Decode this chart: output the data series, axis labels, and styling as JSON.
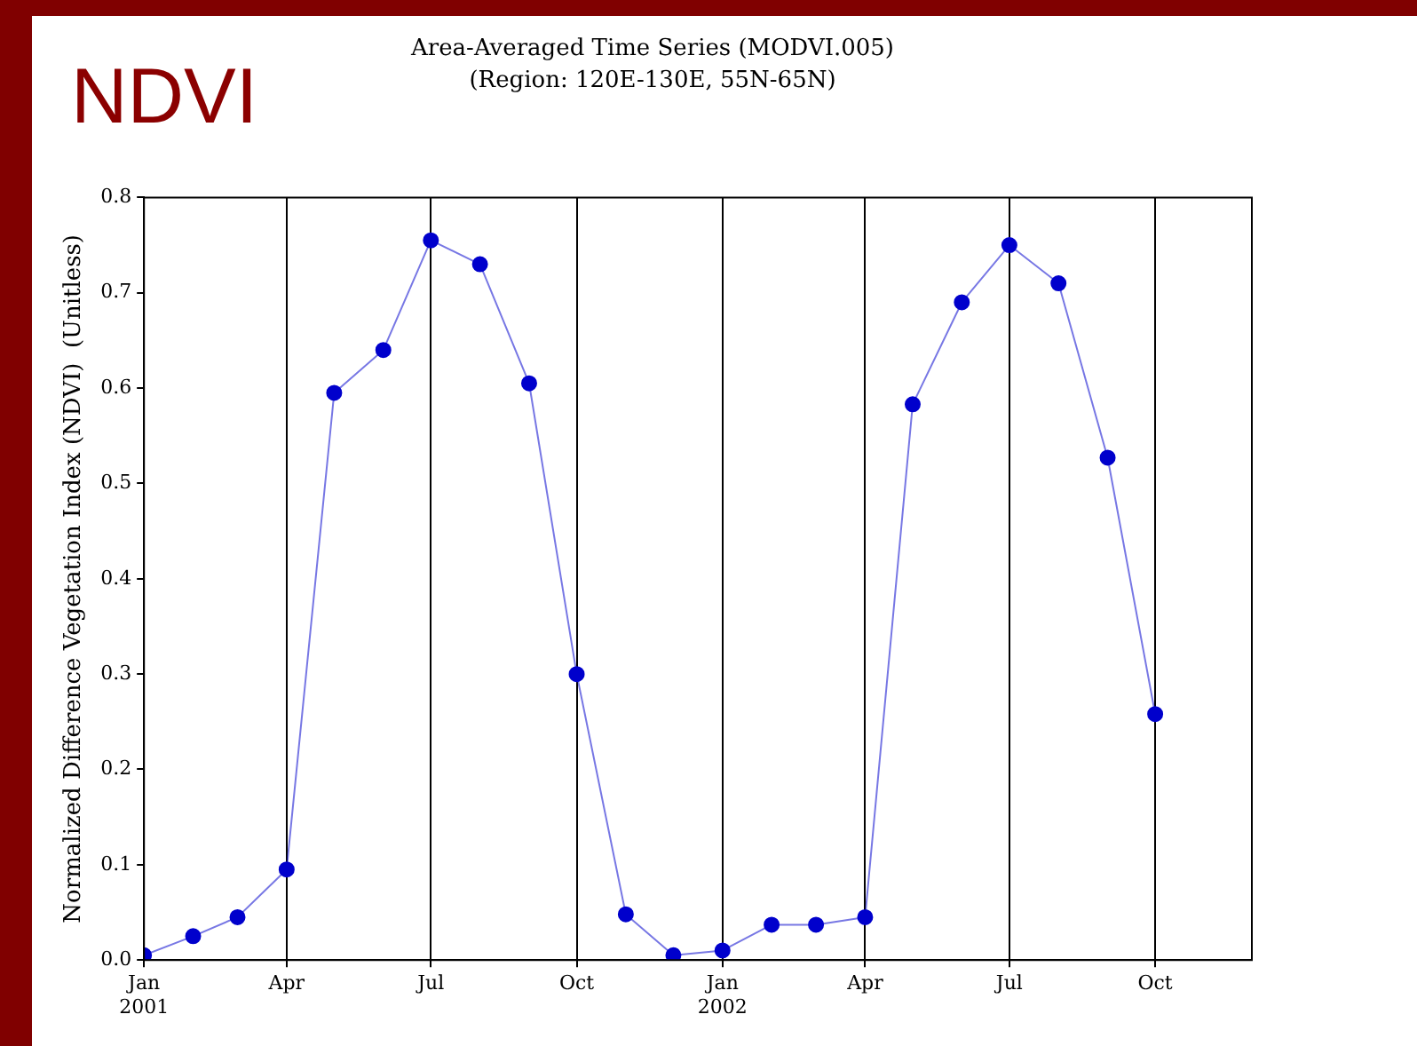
{
  "chart_data": {
    "type": "line",
    "title": "Area-Averaged Time Series (MODVI.005)",
    "subtitle": "(Region: 120E-130E, 55N-65N)",
    "ylabel": "Normalized Difference Vegetation Index (NDVI)  (Unitless)",
    "annotations": [
      "NDVI"
    ],
    "x": [
      "2001-01",
      "2001-02",
      "2001-03",
      "2001-04",
      "2001-05",
      "2001-06",
      "2001-07",
      "2001-08",
      "2001-09",
      "2001-10",
      "2001-11",
      "2001-12",
      "2002-01",
      "2002-02",
      "2002-03",
      "2002-04",
      "2002-05",
      "2002-06",
      "2002-07",
      "2002-08",
      "2002-09",
      "2002-10"
    ],
    "series": [
      {
        "color": "#0000cc",
        "values": [
          0.005,
          0.025,
          0.045,
          0.095,
          0.595,
          0.64,
          0.755,
          0.73,
          0.605,
          0.3,
          0.048,
          0.005,
          0.01,
          0.037,
          0.037,
          0.045,
          0.583,
          0.69,
          0.75,
          0.71,
          0.527,
          0.258
        ]
      }
    ],
    "xlim": [
      "2001-01",
      "2002-12"
    ],
    "xticks": [
      {
        "value": "2001-01",
        "label": "Jan\n2001"
      },
      {
        "value": "2001-04",
        "label": "Apr"
      },
      {
        "value": "2001-07",
        "label": "Jul"
      },
      {
        "value": "2001-10",
        "label": "Oct"
      },
      {
        "value": "2002-01",
        "label": "Jan\n2002"
      },
      {
        "value": "2002-04",
        "label": "Apr"
      },
      {
        "value": "2002-07",
        "label": "Jul"
      },
      {
        "value": "2002-10",
        "label": "Oct"
      }
    ],
    "ylim": [
      0,
      0.8
    ],
    "yticks": [
      {
        "value": 0,
        "label": "0.0"
      },
      0.1,
      0.2,
      0.3,
      0.4,
      0.5,
      0.6,
      0.7,
      0.8
    ],
    "grid": "x",
    "legend": false,
    "marker": "circle",
    "line_style": "solid"
  }
}
